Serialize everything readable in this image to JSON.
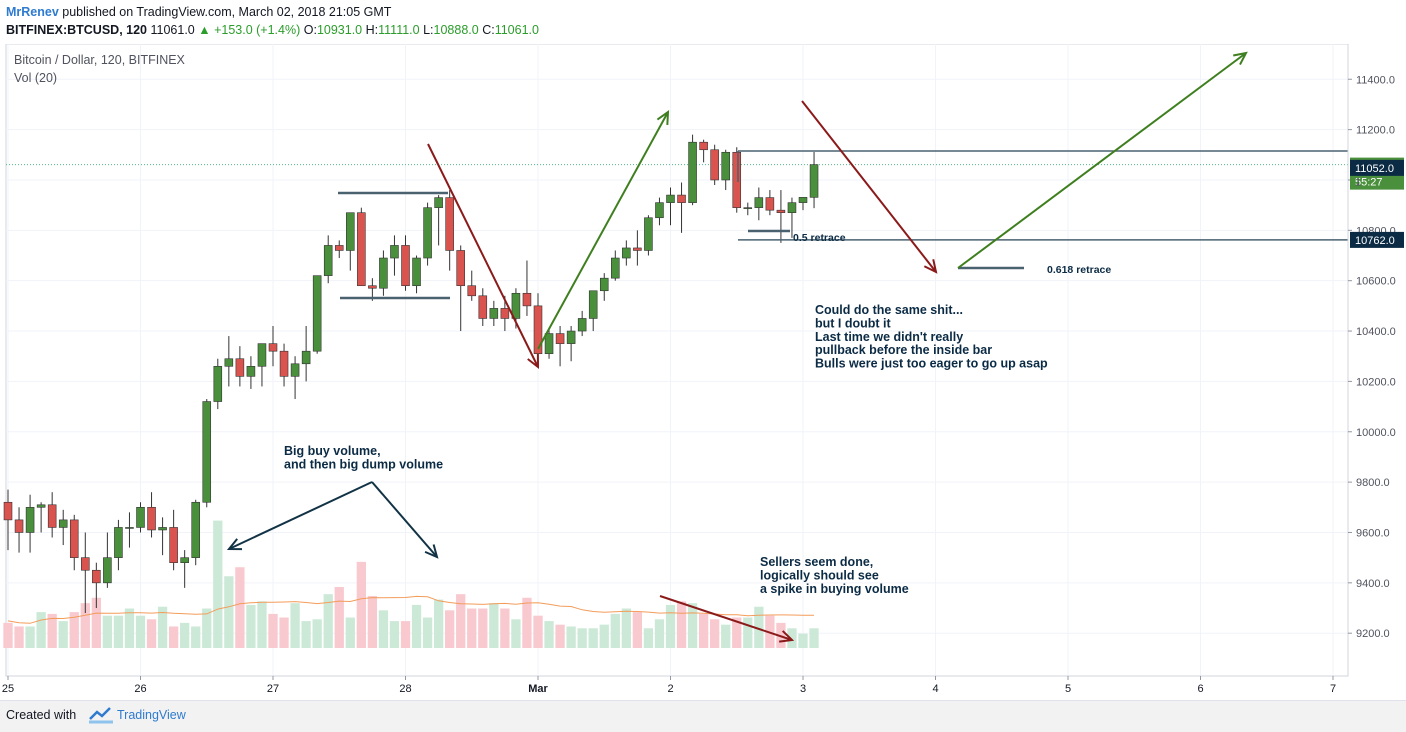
{
  "header": {
    "author": "MrRenev",
    "published": "published on TradingView.com, March 02, 2018 21:05 GMT",
    "symbol": "BITFINEX:BTCUSD, 120",
    "last": "11061.0",
    "change": "+153.0 (+1.4%)",
    "o_label": "O:",
    "o": "10931.0",
    "h_label": "H:",
    "h": "11111.0",
    "l_label": "L:",
    "l": "10888.0",
    "c_label": "C:",
    "c": "11061.0"
  },
  "footer": {
    "created": "Created with",
    "brand": "TradingView"
  },
  "colors": {
    "up": "#53b987",
    "down": "#eb4d5c",
    "candle_up": "#4a8f3c",
    "candle_down": "#d9534f",
    "arrow_red": "#8b1a1a",
    "arrow_green": "#3f7f1f",
    "text_dark": "#0b2b45"
  },
  "chart_data": {
    "type": "candlestick",
    "title": "Bitcoin / Dollar, 120, BITFINEX",
    "indicator": "Vol (20)",
    "x_tick_labels": [
      "25",
      "26",
      "27",
      "28",
      "Mar",
      "2",
      "3",
      "4",
      "5",
      "6",
      "7"
    ],
    "y_tick_labels": [
      "9200.0",
      "9400.0",
      "9600.0",
      "9800.0",
      "10000.0",
      "10200.0",
      "10400.0",
      "10600.0",
      "10800.0",
      "11000.0",
      "11200.0",
      "11400.0"
    ],
    "ylim": [
      9030,
      11540
    ],
    "price_badges": {
      "last": "11061.0",
      "countdown": "55:27",
      "bid": "11052.0",
      "level": "10762.0",
      "partial": "1"
    },
    "candles_ohlc": [
      [
        9720,
        9770,
        9530,
        9650
      ],
      [
        9650,
        9700,
        9520,
        9600
      ],
      [
        9600,
        9750,
        9520,
        9700
      ],
      [
        9700,
        9720,
        9600,
        9710
      ],
      [
        9710,
        9760,
        9580,
        9620
      ],
      [
        9620,
        9690,
        9550,
        9650
      ],
      [
        9650,
        9670,
        9450,
        9500
      ],
      [
        9500,
        9600,
        9280,
        9450
      ],
      [
        9450,
        9480,
        9300,
        9400
      ],
      [
        9400,
        9600,
        9380,
        9500
      ],
      [
        9500,
        9650,
        9450,
        9620
      ],
      [
        9620,
        9680,
        9540,
        9620
      ],
      [
        9620,
        9720,
        9600,
        9700
      ],
      [
        9700,
        9760,
        9580,
        9610
      ],
      [
        9610,
        9660,
        9510,
        9620
      ],
      [
        9620,
        9690,
        9450,
        9480
      ],
      [
        9480,
        9530,
        9380,
        9500
      ],
      [
        9500,
        9730,
        9470,
        9720
      ],
      [
        9720,
        10130,
        9700,
        10120
      ],
      [
        10120,
        10290,
        10090,
        10260
      ],
      [
        10260,
        10380,
        10180,
        10290
      ],
      [
        10290,
        10340,
        10180,
        10220
      ],
      [
        10220,
        10300,
        10170,
        10260
      ],
      [
        10260,
        10340,
        10180,
        10350
      ],
      [
        10350,
        10420,
        10260,
        10320
      ],
      [
        10320,
        10350,
        10180,
        10220
      ],
      [
        10220,
        10300,
        10130,
        10270
      ],
      [
        10270,
        10420,
        10200,
        10320
      ],
      [
        10320,
        10620,
        10310,
        10620
      ],
      [
        10620,
        10780,
        10590,
        10740
      ],
      [
        10740,
        10760,
        10690,
        10720
      ],
      [
        10720,
        10800,
        10640,
        10870
      ],
      [
        10870,
        10890,
        10580,
        10580
      ],
      [
        10580,
        10610,
        10520,
        10570
      ],
      [
        10570,
        10720,
        10540,
        10690
      ],
      [
        10690,
        10780,
        10620,
        10740
      ],
      [
        10740,
        10780,
        10560,
        10580
      ],
      [
        10580,
        10700,
        10550,
        10690
      ],
      [
        10690,
        10910,
        10660,
        10890
      ],
      [
        10890,
        10940,
        10740,
        10930
      ],
      [
        10930,
        10960,
        10640,
        10720
      ],
      [
        10720,
        10740,
        10400,
        10580
      ],
      [
        10580,
        10640,
        10520,
        10540
      ],
      [
        10540,
        10570,
        10420,
        10450
      ],
      [
        10450,
        10520,
        10420,
        10490
      ],
      [
        10490,
        10540,
        10400,
        10450
      ],
      [
        10450,
        10570,
        10410,
        10550
      ],
      [
        10550,
        10680,
        10460,
        10500
      ],
      [
        10500,
        10550,
        10260,
        10310
      ],
      [
        10310,
        10410,
        10290,
        10390
      ],
      [
        10390,
        10420,
        10260,
        10350
      ],
      [
        10350,
        10420,
        10280,
        10400
      ],
      [
        10400,
        10480,
        10380,
        10450
      ],
      [
        10450,
        10560,
        10400,
        10560
      ],
      [
        10560,
        10630,
        10520,
        10610
      ],
      [
        10610,
        10720,
        10600,
        10690
      ],
      [
        10690,
        10760,
        10660,
        10730
      ],
      [
        10730,
        10800,
        10660,
        10720
      ],
      [
        10720,
        10860,
        10700,
        10850
      ],
      [
        10850,
        10930,
        10820,
        10910
      ],
      [
        10910,
        10970,
        10820,
        10940
      ],
      [
        10940,
        10990,
        10790,
        10910
      ],
      [
        10910,
        11180,
        10900,
        11150
      ],
      [
        11150,
        11160,
        11070,
        11120
      ],
      [
        11120,
        11140,
        10980,
        11000
      ],
      [
        11000,
        11120,
        10960,
        11110
      ],
      [
        11110,
        11130,
        10870,
        10890
      ],
      [
        10890,
        10910,
        10860,
        10890
      ],
      [
        10890,
        10970,
        10840,
        10930
      ],
      [
        10930,
        10960,
        10860,
        10880
      ],
      [
        10880,
        10960,
        10750,
        10870
      ],
      [
        10870,
        10930,
        10770,
        10910
      ],
      [
        10910,
        10930,
        10880,
        10931
      ],
      [
        10931,
        11111,
        10888,
        11061
      ]
    ],
    "volume": [
      0.14,
      0.12,
      0.12,
      0.2,
      0.19,
      0.15,
      0.2,
      0.25,
      0.28,
      0.18,
      0.18,
      0.22,
      0.18,
      0.16,
      0.23,
      0.12,
      0.14,
      0.12,
      0.22,
      0.71,
      0.4,
      0.45,
      0.24,
      0.26,
      0.19,
      0.17,
      0.25,
      0.15,
      0.16,
      0.3,
      0.34,
      0.17,
      0.48,
      0.29,
      0.21,
      0.15,
      0.15,
      0.24,
      0.17,
      0.27,
      0.21,
      0.3,
      0.22,
      0.22,
      0.25,
      0.22,
      0.16,
      0.28,
      0.18,
      0.15,
      0.13,
      0.12,
      0.11,
      0.11,
      0.13,
      0.19,
      0.22,
      0.2,
      0.11,
      0.16,
      0.24,
      0.26,
      0.25,
      0.19,
      0.16,
      0.13,
      0.17,
      0.17,
      0.23,
      0.18,
      0.14,
      0.11,
      0.08,
      0.11
    ],
    "annotations": {
      "retrace_05": "0.5 retrace",
      "retrace_0618": "0.618 retrace",
      "note1": [
        "Could do the same shit...",
        "but I doubt it",
        "Last time we didn't really",
        "pullback before the inside bar",
        "Bulls were just too eager to go up asap"
      ],
      "note2": [
        "Big buy volume,",
        "and then big dump volume"
      ],
      "note3": [
        "Sellers seem done,",
        "logically should see",
        "a spike in buying volume"
      ]
    }
  }
}
